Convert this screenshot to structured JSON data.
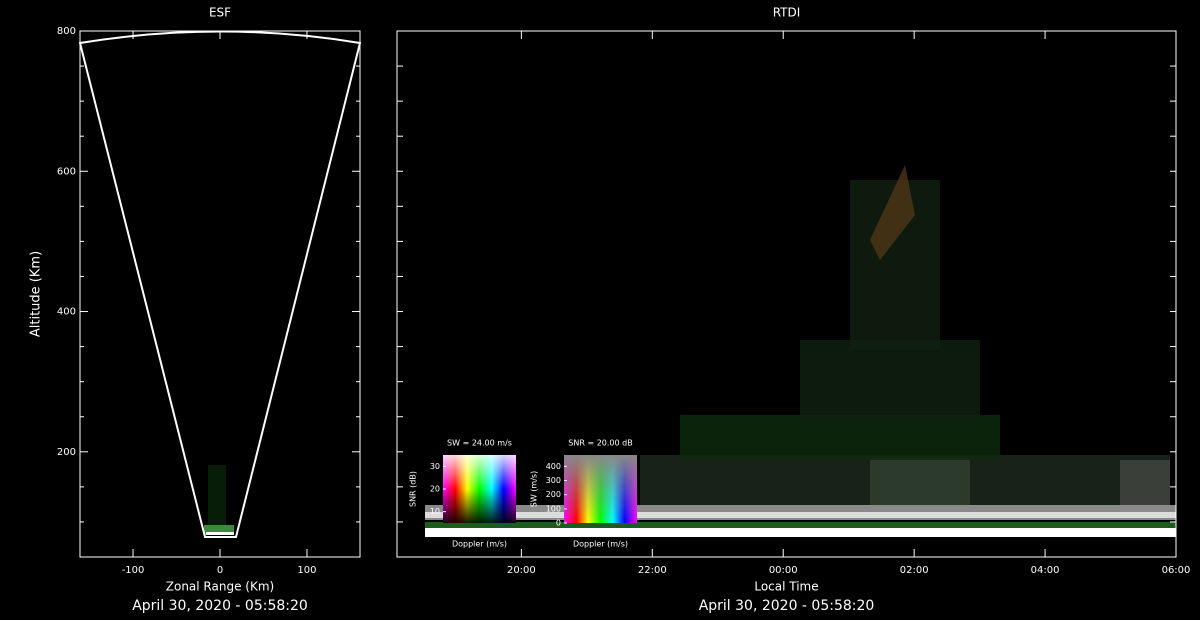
{
  "chart_data": [
    {
      "type": "fan",
      "title": "ESF",
      "x_label": "Zonal Range (Km)",
      "y_label": "Altitude (Km)",
      "timestamp": "April 30, 2020 - 05:58:20",
      "xlim": [
        -161,
        161
      ],
      "ylim": [
        50,
        800
      ],
      "xticks": [
        -100,
        0,
        100
      ],
      "yticks": [
        200,
        400,
        600,
        800
      ],
      "minor_yticks": [
        100,
        150,
        250,
        300,
        350,
        450,
        500,
        550,
        650,
        700,
        750
      ]
    },
    {
      "type": "rtdi",
      "title": "RTDI",
      "x_label": "Local Time",
      "timestamp": "April 30, 2020 - 05:58:20",
      "xlim": [
        18.1,
        30
      ],
      "ylim": [
        50,
        800
      ],
      "xticks": [
        {
          "value": 20,
          "label": "20:00"
        },
        {
          "value": 22,
          "label": "22:00"
        },
        {
          "value": 24,
          "label": "00:00"
        },
        {
          "value": 26,
          "label": "02:00"
        },
        {
          "value": 28,
          "label": "04:00"
        },
        {
          "value": 30,
          "label": "06:00"
        }
      ],
      "minor_yticks": [
        100,
        150,
        200,
        250,
        300,
        350,
        400,
        450,
        500,
        550,
        600,
        650,
        700,
        750
      ],
      "legends": [
        {
          "title": "SW = 24.00 m/s",
          "x_label": "Doppler (m/s)",
          "y_label": "SNR (dB)",
          "ylim": [
            5,
            35
          ],
          "yticks": [
            10,
            20,
            30
          ]
        },
        {
          "title": "SNR = 20.00 dB",
          "x_label": "Doppler (m/s)",
          "y_label": "SW (m/s)",
          "ylim": [
            0,
            480
          ],
          "yticks": [
            0,
            100,
            200,
            300,
            400
          ]
        }
      ]
    }
  ]
}
